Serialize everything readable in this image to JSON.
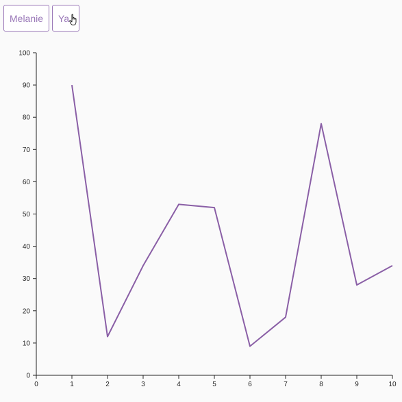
{
  "buttons": [
    {
      "label": "Melanie"
    },
    {
      "label": "Ya"
    }
  ],
  "colors": {
    "accent": "#9a78b8",
    "line": "#8a5fa6",
    "background": "#fafafa"
  },
  "chart_data": {
    "type": "line",
    "title": "",
    "xlabel": "",
    "ylabel": "",
    "xlim": [
      0,
      10
    ],
    "ylim": [
      0,
      100
    ],
    "x_ticks": [
      0,
      1,
      2,
      3,
      4,
      5,
      6,
      7,
      8,
      9,
      10
    ],
    "y_ticks": [
      0,
      10,
      20,
      30,
      40,
      50,
      60,
      70,
      80,
      90,
      100
    ],
    "grid": false,
    "series": [
      {
        "x": [
          1,
          2,
          3,
          4,
          5,
          6,
          7,
          8,
          9,
          10
        ],
        "values": [
          90,
          12,
          34,
          53,
          52,
          9,
          18,
          78,
          28,
          34
        ]
      }
    ]
  }
}
